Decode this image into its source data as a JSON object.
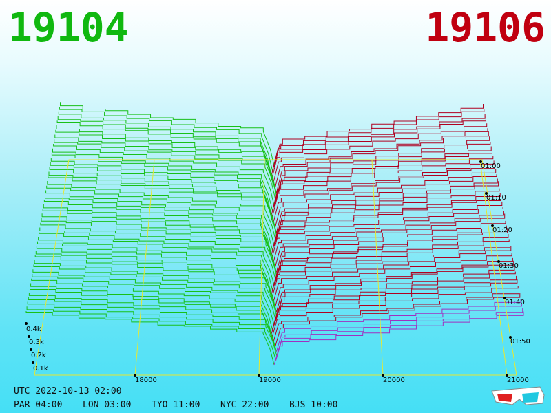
{
  "header": {
    "left_symbol": "19104",
    "right_symbol": "19106"
  },
  "price_axis": {
    "labels": [
      "18000",
      "19000",
      "20000",
      "21000"
    ]
  },
  "depth_axis": {
    "labels": [
      "0.4k",
      "0.3k",
      "0.2k",
      "0.1k"
    ]
  },
  "time_axis": {
    "labels": [
      "01:00",
      "01:10",
      "01:20",
      "01:30",
      "01:40",
      "01:50"
    ]
  },
  "footer": {
    "utc": "UTC 2022-10-13 02:00",
    "zones": [
      "PAR 04:00",
      "LON 03:00",
      "TYO 11:00",
      "NYC 22:00",
      "BJS 10:00"
    ]
  }
}
